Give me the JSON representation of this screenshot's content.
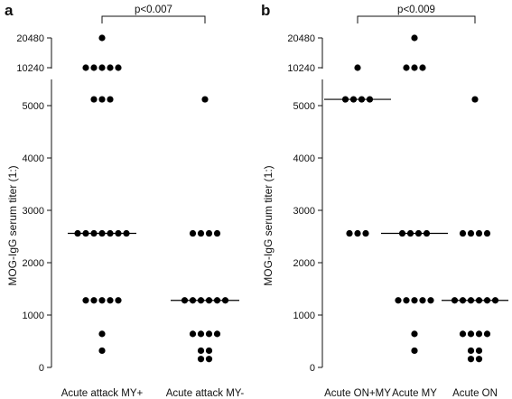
{
  "chart_data": [
    {
      "type": "scatter",
      "panel_label": "a",
      "ylabel": "MOG-IgG serum titer (1:)",
      "upper_ticks": [
        10240,
        20480
      ],
      "lower_ticks": [
        0,
        1000,
        2000,
        3000,
        4000,
        5000
      ],
      "ylim_lower": [
        0,
        5300
      ],
      "comparison": {
        "label": "p<0.007",
        "groups": [
          0,
          1
        ]
      },
      "categories": [
        "Acute attack MY+",
        "Acute attack MY-"
      ],
      "groups": [
        {
          "category": "Acute attack MY+",
          "median": 2560,
          "values": [
            20480,
            10240,
            10240,
            10240,
            10240,
            10240,
            5120,
            5120,
            5120,
            2560,
            2560,
            2560,
            2560,
            2560,
            2560,
            2560,
            1280,
            1280,
            1280,
            1280,
            1280,
            640,
            320
          ]
        },
        {
          "category": "Acute attack MY-",
          "median": 1280,
          "values": [
            5120,
            2560,
            2560,
            2560,
            2560,
            1280,
            1280,
            1280,
            1280,
            1280,
            1280,
            640,
            640,
            640,
            640,
            320,
            320,
            160,
            160
          ]
        }
      ]
    },
    {
      "type": "scatter",
      "panel_label": "b",
      "ylabel": "MOG-IgG serum titer (1:)",
      "upper_ticks": [
        10240,
        20480
      ],
      "lower_ticks": [
        0,
        1000,
        2000,
        3000,
        4000,
        5000
      ],
      "ylim_lower": [
        0,
        5300
      ],
      "comparison": {
        "label": "p<0.009",
        "groups": [
          0,
          2
        ]
      },
      "categories": [
        "Acute ON+MY",
        "Acute MY",
        "Acute ON"
      ],
      "groups": [
        {
          "category": "Acute ON+MY",
          "median": 5120,
          "values": [
            10240,
            5120,
            5120,
            5120,
            5120,
            2560,
            2560,
            2560
          ]
        },
        {
          "category": "Acute MY",
          "median": 2560,
          "values": [
            20480,
            10240,
            10240,
            10240,
            2560,
            2560,
            2560,
            2560,
            1280,
            1280,
            1280,
            1280,
            1280,
            640,
            320
          ]
        },
        {
          "category": "Acute ON",
          "median": 1280,
          "values": [
            5120,
            2560,
            2560,
            2560,
            2560,
            1280,
            1280,
            1280,
            1280,
            1280,
            1280,
            640,
            640,
            640,
            640,
            320,
            320,
            160,
            160
          ]
        }
      ]
    }
  ]
}
